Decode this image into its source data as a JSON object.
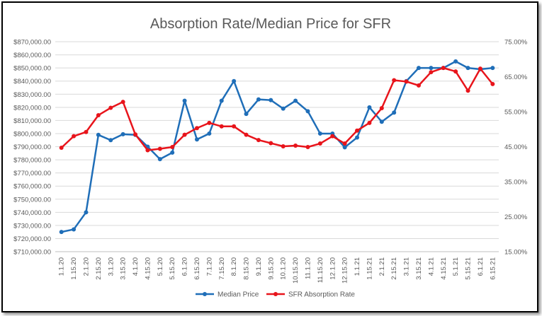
{
  "chart_data": {
    "type": "line",
    "title": "Absorption Rate/Median Price for SFR",
    "xlabel": "",
    "ylabel": "",
    "y2label": "",
    "categories": [
      "1.1.20",
      "1.15.20",
      "2.1.20",
      "2.15.20",
      "3.1.20",
      "3.15.20",
      "4.1.20",
      "4.15.20",
      "5.1.20",
      "5.15.20",
      "6.1.20",
      "6.15.20",
      "7.1.20",
      "7.15.20",
      "8.1.20",
      "8.15.20",
      "9.1.20",
      "9.15.20",
      "10.1.20",
      "10.15.20",
      "11.1.20",
      "11.15.20",
      "12.1.20",
      "12.15.20",
      "1.1.21",
      "1.15.21",
      "2.1.21",
      "2.15.21",
      "3.1.21",
      "3.15.21",
      "4.1.21",
      "4.15.21",
      "5.1.21",
      "5.15.21",
      "6.1.21",
      "6.15.21"
    ],
    "y_left_ticks": [
      "$710,000.00",
      "$720,000.00",
      "$730,000.00",
      "$740,000.00",
      "$750,000.00",
      "$760,000.00",
      "$770,000.00",
      "$780,000.00",
      "$790,000.00",
      "$800,000.00",
      "$810,000.00",
      "$820,000.00",
      "$830,000.00",
      "$840,000.00",
      "$850,000.00",
      "$860,000.00",
      "$870,000.00"
    ],
    "y_right_ticks": [
      "15.00%",
      "25.00%",
      "35.00%",
      "45.00%",
      "55.00%",
      "65.00%",
      "75.00%"
    ],
    "ylim_left": [
      710000,
      870000
    ],
    "ylim_right": [
      15,
      75
    ],
    "legend_position": "bottom",
    "grid": "horizontal",
    "series": [
      {
        "name": "Median Price",
        "axis": "left",
        "color": "#1F6EB8",
        "values": [
          725000,
          727000,
          740000,
          799000,
          795000,
          799500,
          799000,
          790000,
          780500,
          785500,
          825000,
          795500,
          800000,
          825000,
          840000,
          815000,
          826000,
          825500,
          819000,
          825000,
          817000,
          800000,
          800000,
          789500,
          797000,
          820000,
          809000,
          816000,
          840000,
          850000,
          850000,
          850000,
          855000,
          850000,
          849000,
          850000
        ]
      },
      {
        "name": "SFR Absorption Rate",
        "axis": "right",
        "color": "#E8141B",
        "values": [
          44.7,
          48.0,
          49.2,
          54.0,
          56.1,
          57.8,
          48.5,
          44.0,
          44.4,
          44.9,
          48.4,
          50.3,
          51.8,
          50.8,
          50.8,
          48.4,
          46.9,
          46.0,
          45.1,
          45.3,
          44.9,
          45.9,
          48.0,
          45.9,
          49.6,
          51.8,
          56.0,
          64.0,
          63.6,
          62.5,
          66.3,
          67.5,
          66.5,
          61.0,
          67.3,
          62.9
        ]
      }
    ]
  }
}
